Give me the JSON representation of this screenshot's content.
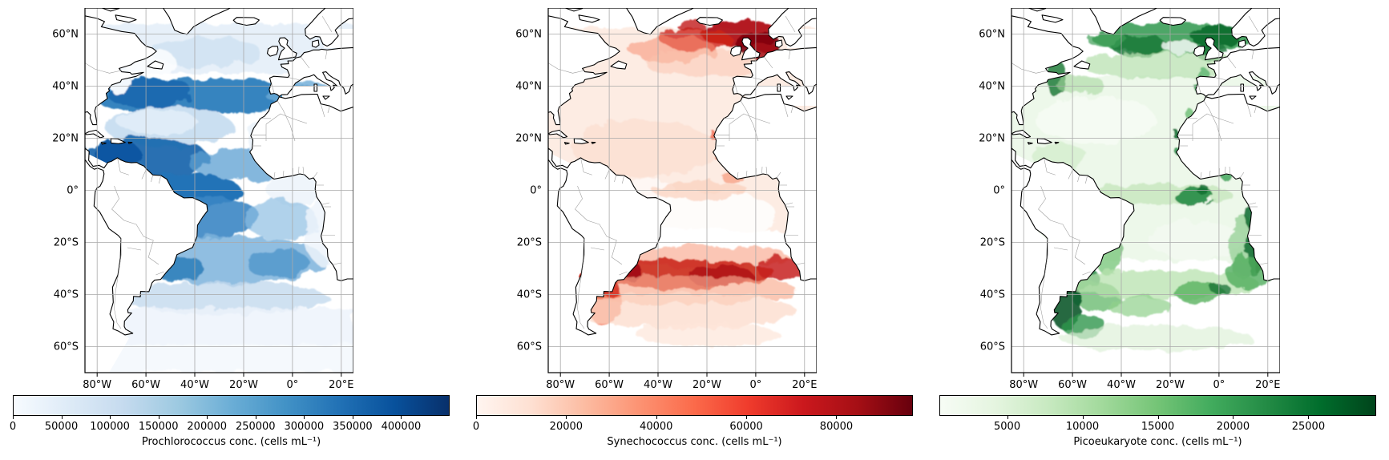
{
  "figure": {
    "description": "Three-panel map figure of the Atlantic Ocean showing surface picophytoplankton concentrations",
    "region": "Atlantic Ocean (85W-25E, 70S-70N)"
  },
  "axes": {
    "lon_ticks": [
      "80°W",
      "60°W",
      "40°W",
      "20°W",
      "0°",
      "20°E"
    ],
    "lat_ticks": [
      "60°N",
      "40°N",
      "20°N",
      "0°",
      "20°S",
      "40°S",
      "60°S"
    ]
  },
  "panels": [
    {
      "name": "prochlorococcus",
      "colorbar": {
        "label": "Prochlorococcus conc. (cells mL⁻¹)",
        "colormap": "Blues",
        "vmin": 0,
        "vmax": 450000,
        "ticks": [
          0,
          50000,
          100000,
          150000,
          200000,
          250000,
          300000,
          350000,
          400000
        ],
        "tick_labels": [
          "0",
          "50000",
          "100000",
          "150000",
          "200000",
          "250000",
          "300000",
          "350000",
          "400000"
        ],
        "gradient_stops": [
          "#f7fbff",
          "#deebf7",
          "#c6dbef",
          "#9ecae1",
          "#6baed6",
          "#4292c6",
          "#2171b5",
          "#08519c",
          "#08306b"
        ]
      }
    },
    {
      "name": "synechococcus",
      "colorbar": {
        "label": "Synechococcus conc. (cells mL⁻¹)",
        "colormap": "Reds",
        "vmin": 0,
        "vmax": 97000,
        "ticks": [
          0,
          20000,
          40000,
          60000,
          80000
        ],
        "tick_labels": [
          "0",
          "20000",
          "40000",
          "60000",
          "80000"
        ],
        "gradient_stops": [
          "#fff5f0",
          "#fee0d2",
          "#fcbba1",
          "#fc9272",
          "#fb6a4a",
          "#ef3b2c",
          "#cb181d",
          "#a50f15",
          "#67000d"
        ]
      }
    },
    {
      "name": "picoeukaryote",
      "colorbar": {
        "label": "Picoeukaryote conc. (cells mL⁻¹)",
        "colormap": "Greens",
        "vmin": 500,
        "vmax": 29500,
        "ticks": [
          5000,
          10000,
          15000,
          20000,
          25000
        ],
        "tick_labels": [
          "5000",
          "10000",
          "15000",
          "20000",
          "25000"
        ],
        "gradient_stops": [
          "#f7fcf5",
          "#e5f5e0",
          "#c7e9c0",
          "#a1d99b",
          "#74c476",
          "#41ab5d",
          "#238b45",
          "#006d2c",
          "#00441b"
        ]
      }
    }
  ],
  "chart_data": [
    {
      "type": "heatmap",
      "title": "Prochlorococcus conc. (cells mL⁻¹)",
      "projection": "PlateCarree",
      "lon_range": [
        -85,
        25
      ],
      "lat_range": [
        -70,
        70
      ],
      "x_ticks": [
        "80°W",
        "60°W",
        "40°W",
        "20°W",
        "0°",
        "20°E"
      ],
      "y_ticks": [
        "60°N",
        "40°N",
        "20°N",
        "0°",
        "20°S",
        "40°S",
        "60°S"
      ],
      "grid": true,
      "colormap": "Blues",
      "colorbar_ticks": [
        0,
        50000,
        100000,
        150000,
        200000,
        250000,
        300000,
        350000,
        400000
      ],
      "value_range": [
        0,
        450000
      ],
      "legend_position": "bottom horizontal colorbar",
      "pattern_notes": [
        "high ~300000-450000 cells/mL across 30-45N mid-latitude band and Caribbean/tropical west Atlantic 0-20N",
        "moderate-light ~100000-200000 in subtropical gyre center 20-30N",
        "moderate ~150000-300000 across South Atlantic 0-40S, patchy with white gaps",
        "very low <50000 north of 45N and south of 45S",
        "no data (white) over land, Mediterranean, Pacific"
      ]
    },
    {
      "type": "heatmap",
      "title": "Synechococcus conc. (cells mL⁻¹)",
      "projection": "PlateCarree",
      "lon_range": [
        -85,
        25
      ],
      "lat_range": [
        -70,
        70
      ],
      "x_ticks": [
        "80°W",
        "60°W",
        "40°W",
        "20°W",
        "0°",
        "20°E"
      ],
      "y_ticks": [
        "60°N",
        "40°N",
        "20°N",
        "0°",
        "20°S",
        "40°S",
        "60°S"
      ],
      "grid": true,
      "colormap": "Reds",
      "colorbar_ticks": [
        0,
        20000,
        40000,
        60000,
        80000
      ],
      "value_range": [
        0,
        97000
      ],
      "legend_position": "bottom horizontal colorbar",
      "pattern_notes": [
        "very high ~60000-95000 cells/mL patches at 50-65N (around Iceland, west of Norway/UK, North Sea)",
        "high ~40000-80000 speckled band at 30-45S across the South Atlantic and Patagonian shelf",
        "faint ~3000-10000 over most of the basin 45N-30S",
        "white gaps 5-25S central-east basin"
      ]
    },
    {
      "type": "heatmap",
      "title": "Picoeukaryote conc. (cells mL⁻¹)",
      "projection": "PlateCarree",
      "lon_range": [
        -85,
        25
      ],
      "lat_range": [
        -70,
        70
      ],
      "x_ticks": [
        "80°W",
        "60°W",
        "40°W",
        "20°W",
        "0°",
        "20°E"
      ],
      "y_ticks": [
        "60°N",
        "40°N",
        "20°N",
        "0°",
        "20°S",
        "40°S",
        "60°S"
      ],
      "grid": true,
      "colormap": "Greens",
      "colorbar_ticks": [
        5000,
        10000,
        15000,
        20000,
        25000
      ],
      "value_range": [
        500,
        29500
      ],
      "legend_position": "bottom horizontal colorbar",
      "pattern_notes": [
        "high ~15000-27000 cells/mL patchy across 47-65N subpolar North Atlantic",
        "dark coastal maxima: US northeast shelf, Benguela upwelling 8-28S, Patagonian shelf 38-52S",
        "equatorial upwelling patch ~10000-20000 near 0-5S, 5-20W",
        "very low ~1000-4000 in subtropical gyres; moderate band 38-50S"
      ]
    }
  ]
}
